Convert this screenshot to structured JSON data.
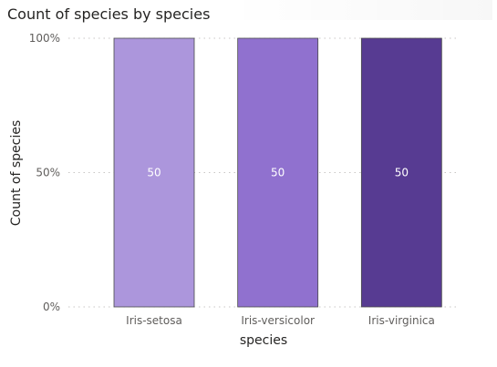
{
  "chart_data": {
    "type": "bar",
    "title": "Count of species by species",
    "xlabel": "species",
    "ylabel": "Count of species",
    "categories": [
      "Iris-setosa",
      "Iris-versicolor",
      "Iris-virginica"
    ],
    "values": [
      50,
      50,
      50
    ],
    "value_labels": [
      "50",
      "50",
      "50"
    ],
    "y_axis": {
      "format": "percent",
      "ylim": [
        0,
        100
      ],
      "ticks": [
        0,
        50,
        100
      ],
      "tick_labels": [
        "0%",
        "50%",
        "100%"
      ]
    },
    "percent_of_column": [
      100,
      100,
      100
    ],
    "colors": [
      "#ac96dc",
      "#9071cf",
      "#573b92"
    ],
    "grid": "horizontal dotted",
    "legend": "none"
  }
}
